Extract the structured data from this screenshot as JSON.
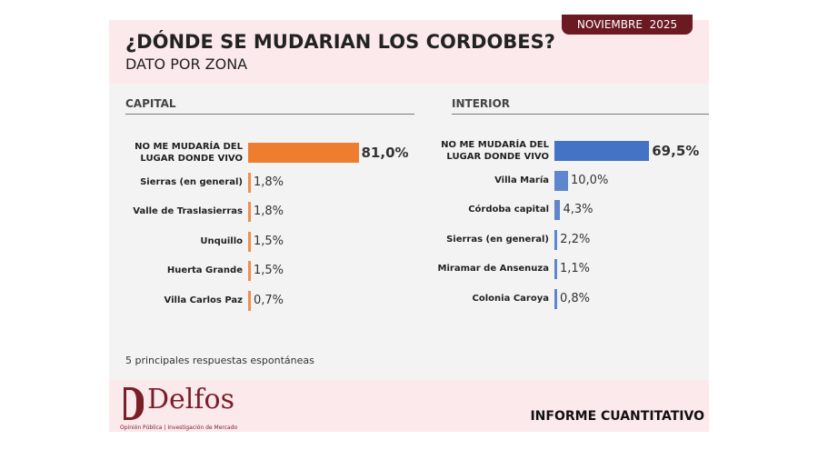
{
  "header": {
    "title": "¿DÓNDE SE MUDARIAN LOS CORDOBES?",
    "subtitle": "DATO POR ZONA",
    "date": "NOVIEMBRE  2025"
  },
  "chart_data": [
    {
      "type": "bar",
      "orientation": "horizontal",
      "title": "CAPITAL",
      "color": "#ee7d2f",
      "categories": [
        "NO ME MUDARÍA DEL LUGAR DONDE VIVO",
        "Sierras (en general)",
        "Valle de Traslasierras",
        "Unquillo",
        "Huerta Grande",
        "Villa Carlos Paz"
      ],
      "values": [
        81.0,
        1.8,
        1.8,
        1.5,
        1.5,
        0.7
      ],
      "value_labels": [
        "81,0%",
        "1,8%",
        "1,8%",
        "1,5%",
        "1,5%",
        "0,7%"
      ]
    },
    {
      "type": "bar",
      "orientation": "horizontal",
      "title": "INTERIOR",
      "color": "#4472c4",
      "categories": [
        "NO ME MUDARÍA DEL LUGAR DONDE VIVO",
        "Villa María",
        "Córdoba capital",
        "Sierras (en general)",
        "Miramar de Ansenuza",
        "Colonia Caroya"
      ],
      "values": [
        69.5,
        10.0,
        4.3,
        2.2,
        1.1,
        0.8
      ],
      "value_labels": [
        "69,5%",
        "10,0%",
        "4,3%",
        "2,2%",
        "1,1%",
        "0,8%"
      ]
    }
  ],
  "footnote": "5 principales respuestas espontáneas",
  "footer": {
    "brand": "Delfos",
    "tagline": "Opinión Pública | Investigación de Mercado",
    "report": "INFORME CUANTITATIVO"
  }
}
